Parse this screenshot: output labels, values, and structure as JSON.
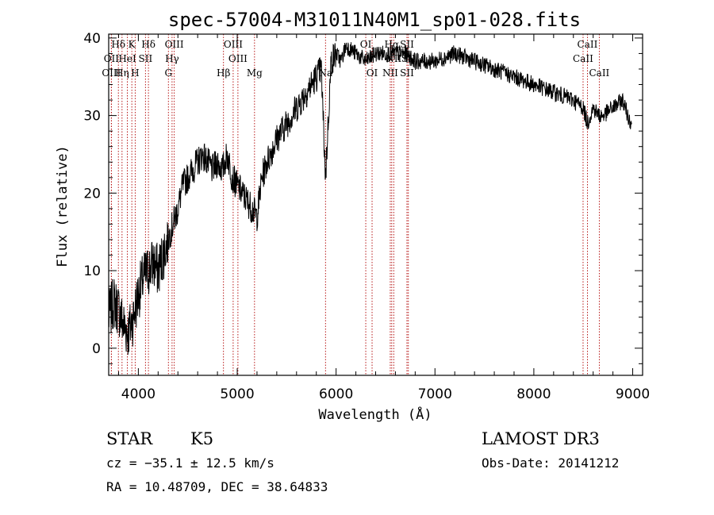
{
  "chart_data": {
    "type": "line",
    "title": "spec-57004-M31011N40M1_sp01-028.fits",
    "xlabel": "Wavelength (Å)",
    "ylabel": "Flux (relative)",
    "xlim": [
      3700,
      9100
    ],
    "ylim": [
      -3.5,
      40.5
    ],
    "xticks": [
      4000,
      5000,
      6000,
      7000,
      8000,
      9000
    ],
    "yticks": [
      0,
      10,
      20,
      30,
      40
    ],
    "spectrum": {
      "x": [
        3700,
        3750,
        3800,
        3850,
        3900,
        3950,
        4000,
        4050,
        4100,
        4150,
        4200,
        4250,
        4300,
        4350,
        4400,
        4450,
        4500,
        4550,
        4600,
        4650,
        4700,
        4750,
        4800,
        4850,
        4900,
        4950,
        5000,
        5050,
        5100,
        5150,
        5200,
        5250,
        5300,
        5400,
        5500,
        5600,
        5700,
        5800,
        5850,
        5893,
        5950,
        6000,
        6050,
        6100,
        6200,
        6300,
        6400,
        6500,
        6600,
        6700,
        6800,
        7000,
        7200,
        7400,
        7600,
        7800,
        8000,
        8200,
        8400,
        8500,
        8542,
        8600,
        8662,
        8700,
        8800,
        8900,
        8950,
        8990
      ],
      "y": [
        4,
        6,
        5,
        3,
        2,
        4,
        7,
        9,
        10,
        11,
        10,
        12,
        14,
        16,
        18,
        21,
        22,
        23,
        24,
        25,
        24,
        23,
        24,
        23,
        25,
        22,
        21,
        20,
        19,
        18,
        17,
        22,
        24,
        27,
        29,
        31,
        33,
        35,
        36,
        22,
        37,
        38,
        37,
        39,
        38,
        37,
        38,
        38,
        38,
        38,
        37,
        37,
        38,
        37,
        36,
        35,
        34,
        33,
        32,
        31,
        29,
        31,
        30,
        30,
        31,
        32,
        30,
        29
      ]
    },
    "lines": [
      {
        "name": "Hδ",
        "x": 3798,
        "row": 0
      },
      {
        "name": "K",
        "x": 3934,
        "row": 0
      },
      {
        "name": "Hδ",
        "x": 4102,
        "row": 0
      },
      {
        "name": "OIII",
        "x": 4363,
        "row": 0
      },
      {
        "name": "OIII",
        "x": 4959,
        "row": 0
      },
      {
        "name": "OI",
        "x": 6300,
        "row": 0
      },
      {
        "name": "Hα",
        "x": 6563,
        "row": 0
      },
      {
        "name": "SII",
        "x": 6717,
        "row": 0
      },
      {
        "name": "CaII",
        "x": 8542,
        "row": 0
      },
      {
        "name": "OII",
        "x": 3727,
        "row": 1
      },
      {
        "name": "HeI",
        "x": 3889,
        "row": 1
      },
      {
        "name": "SII",
        "x": 4072,
        "row": 1
      },
      {
        "name": "Hγ",
        "x": 4341,
        "row": 1
      },
      {
        "name": "OIII",
        "x": 5007,
        "row": 1
      },
      {
        "name": "NII",
        "x": 6583,
        "row": 1
      },
      {
        "name": "SII",
        "x": 6731,
        "row": 1
      },
      {
        "name": "CaII",
        "x": 8498,
        "row": 1
      },
      {
        "name": "OIII",
        "x": 3727,
        "row": 2
      },
      {
        "name": "Hη",
        "x": 3835,
        "row": 2
      },
      {
        "name": "H",
        "x": 3968,
        "row": 2
      },
      {
        "name": "G",
        "x": 4304,
        "row": 2
      },
      {
        "name": "Hβ",
        "x": 4861,
        "row": 2
      },
      {
        "name": "Mg",
        "x": 5175,
        "row": 2
      },
      {
        "name": "Na",
        "x": 5893,
        "row": 2
      },
      {
        "name": "OI",
        "x": 6364,
        "row": 2
      },
      {
        "name": "NII",
        "x": 6548,
        "row": 2
      },
      {
        "name": "SII",
        "x": 6717,
        "row": 2
      },
      {
        "name": "CaII",
        "x": 8662,
        "row": 2
      }
    ]
  },
  "footer": {
    "class_label": "STAR",
    "subclass": "K5",
    "survey": "LAMOST DR3",
    "cz": "cz = −35.1 ± 12.5 km/s",
    "obs_date": "Obs-Date: 20141212",
    "coords": "RA =  10.48709, DEC =  38.64833"
  }
}
